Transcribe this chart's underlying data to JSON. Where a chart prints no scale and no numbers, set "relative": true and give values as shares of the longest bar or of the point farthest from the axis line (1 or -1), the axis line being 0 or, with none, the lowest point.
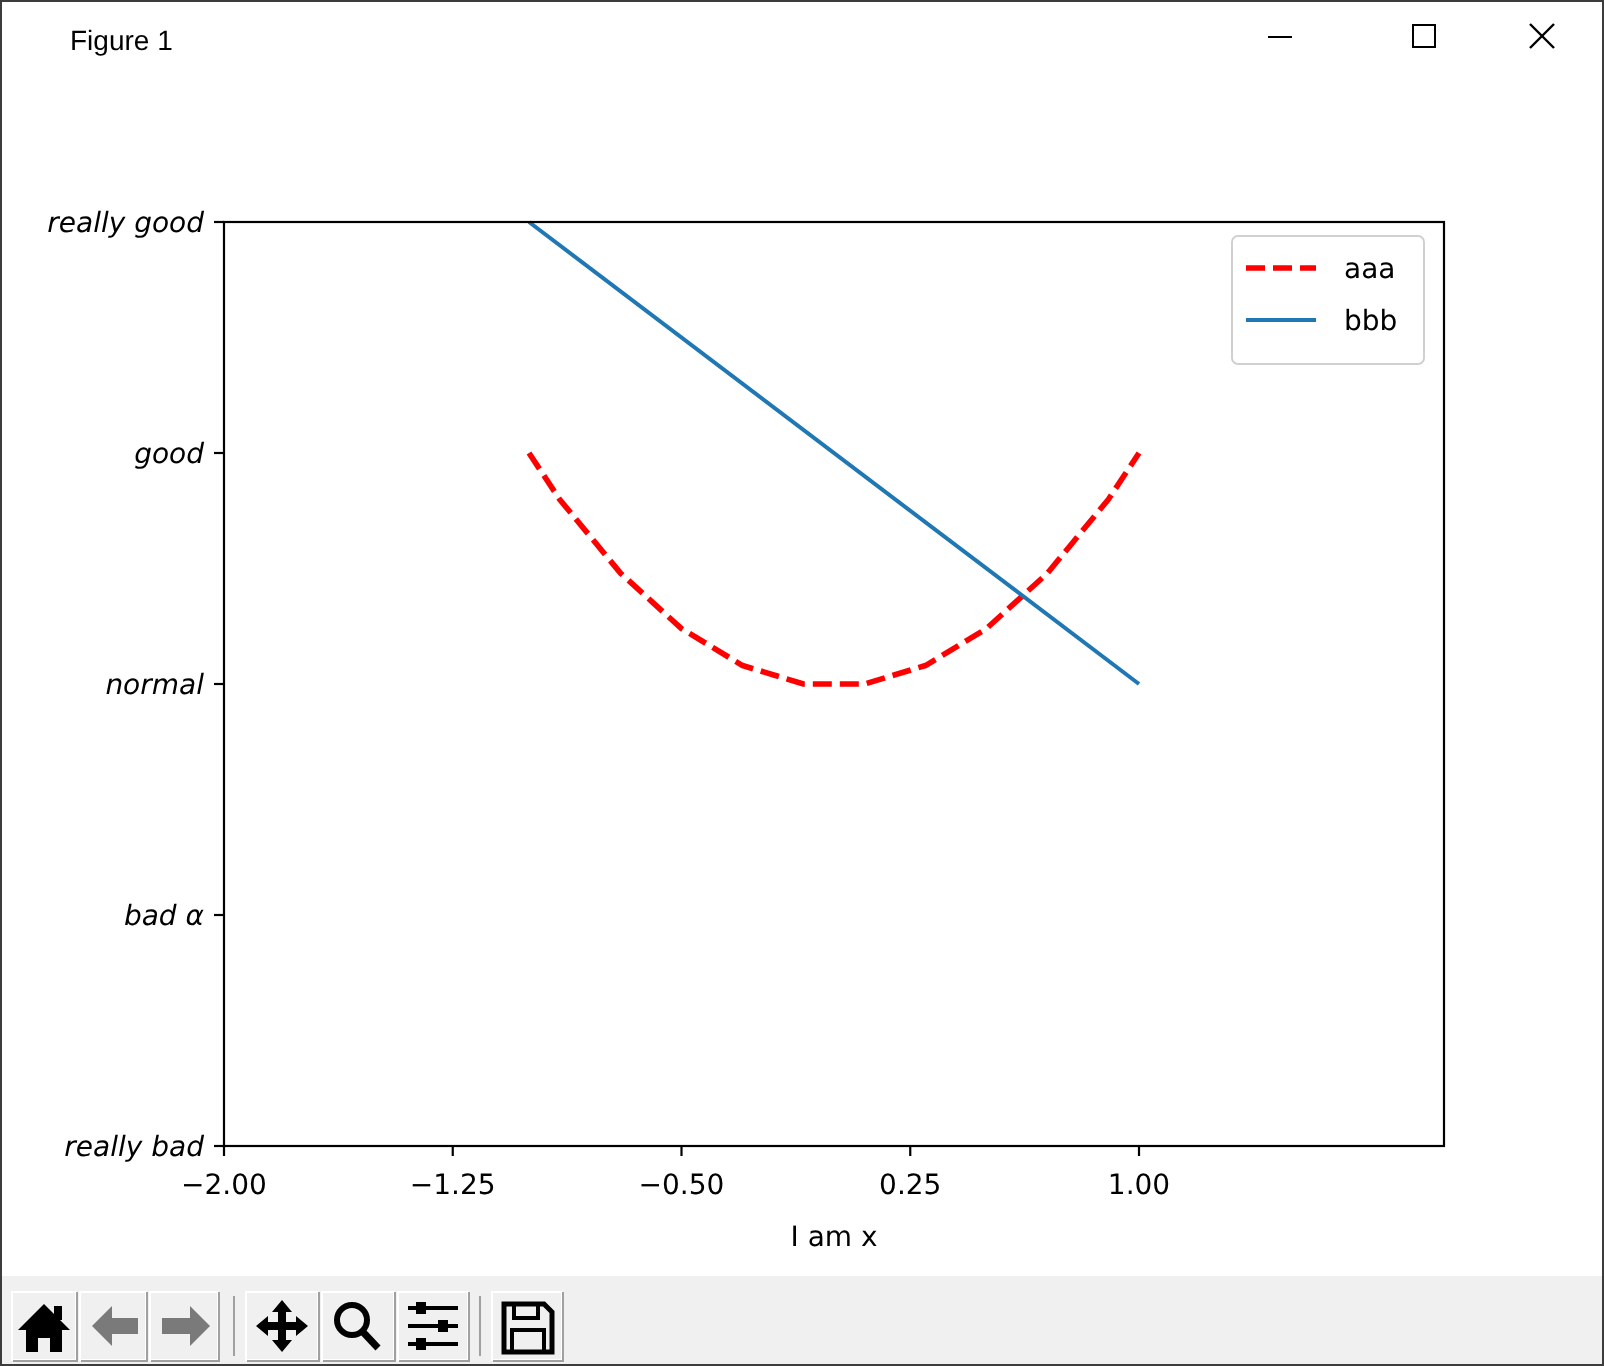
{
  "chart_data": {
    "type": "line",
    "annotations": [
      "Figure 1"
    ],
    "xlabel": "I am x",
    "xlim": [
      -2,
      2
    ],
    "xticks": [
      {
        "value": -2,
        "label": "−2.00"
      },
      {
        "value": -1.25,
        "label": "−1.25"
      },
      {
        "value": -0.5,
        "label": "−0.50"
      },
      {
        "value": 0.25,
        "label": "0.25"
      },
      {
        "value": 1,
        "label": "1.00"
      }
    ],
    "relative": true,
    "y_categories": [
      "really good",
      "good",
      "normal",
      "bad α",
      "really bad"
    ],
    "legend": "top right",
    "series": [
      {
        "name": "aaa",
        "color": "#ff0000",
        "line_style": "dashed",
        "x": [
          -1,
          -0.9,
          -0.8,
          -0.7,
          -0.6,
          -0.5,
          -0.4,
          -0.3,
          -0.2,
          -0.1,
          0,
          0.1,
          0.2,
          0.3,
          0.4,
          0.5,
          0.6,
          0.7,
          0.8,
          0.9,
          1
        ],
        "values": [
          0.75,
          0.7,
          0.66,
          0.62,
          0.59,
          0.56,
          0.54,
          0.52,
          0.51,
          0.5,
          0.5,
          0.5,
          0.51,
          0.52,
          0.54,
          0.56,
          0.59,
          0.62,
          0.66,
          0.7,
          0.75
        ]
      },
      {
        "name": "bbb",
        "color": "#1f77b4",
        "line_style": "solid",
        "x": [
          -1,
          1
        ],
        "values": [
          1,
          0.5
        ]
      }
    ]
  }
}
